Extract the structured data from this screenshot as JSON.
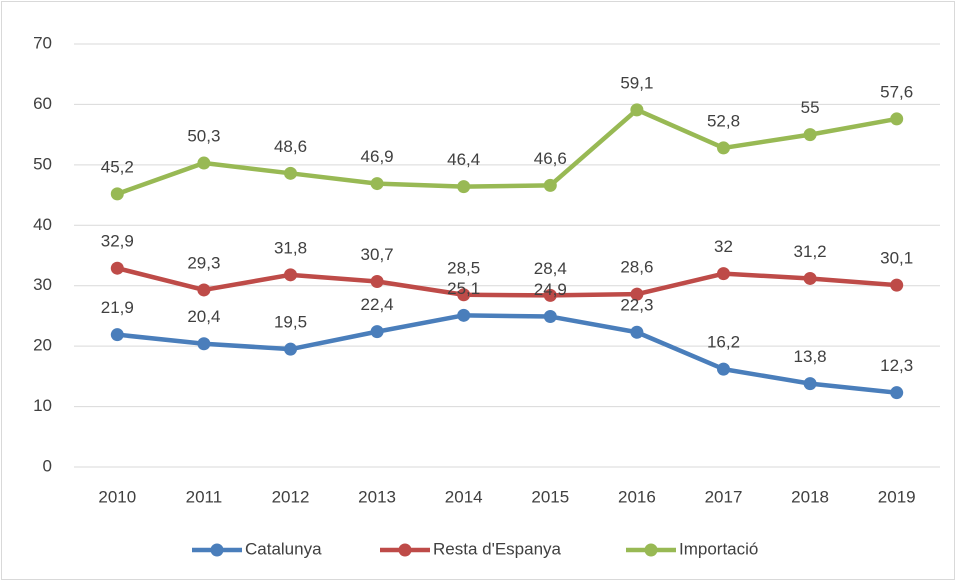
{
  "chart_data": {
    "type": "line",
    "categories": [
      "2010",
      "2011",
      "2012",
      "2013",
      "2014",
      "2015",
      "2016",
      "2017",
      "2018",
      "2019"
    ],
    "series": [
      {
        "name": "Catalunya",
        "color": "#4a7ebb",
        "values": [
          21.9,
          20.4,
          19.5,
          22.4,
          25.1,
          24.9,
          22.3,
          16.2,
          13.8,
          12.3
        ],
        "value_labels": [
          "21,9",
          "20,4",
          "19,5",
          "22,4",
          "25,1",
          "24,9",
          "22,3",
          "16,2",
          "13,8",
          "12,3"
        ]
      },
      {
        "name": "Resta d'Espanya",
        "color": "#be4b48",
        "values": [
          32.9,
          29.3,
          31.8,
          30.7,
          28.5,
          28.4,
          28.6,
          32,
          31.2,
          30.1
        ],
        "value_labels": [
          "32,9",
          "29,3",
          "31,8",
          "30,7",
          "28,5",
          "28,4",
          "28,6",
          "32",
          "31,2",
          "30,1"
        ]
      },
      {
        "name": "Importació",
        "color": "#98b954",
        "values": [
          45.2,
          50.3,
          48.6,
          46.9,
          46.4,
          46.6,
          59.1,
          52.8,
          55,
          57.6
        ],
        "value_labels": [
          "45,2",
          "50,3",
          "48,6",
          "46,9",
          "46,4",
          "46,6",
          "59,1",
          "52,8",
          "55",
          "57,6"
        ]
      }
    ],
    "ylim": [
      0,
      70
    ],
    "yticks": [
      0,
      10,
      20,
      30,
      40,
      50,
      60,
      70
    ],
    "grid": true,
    "legend": "bottom"
  }
}
